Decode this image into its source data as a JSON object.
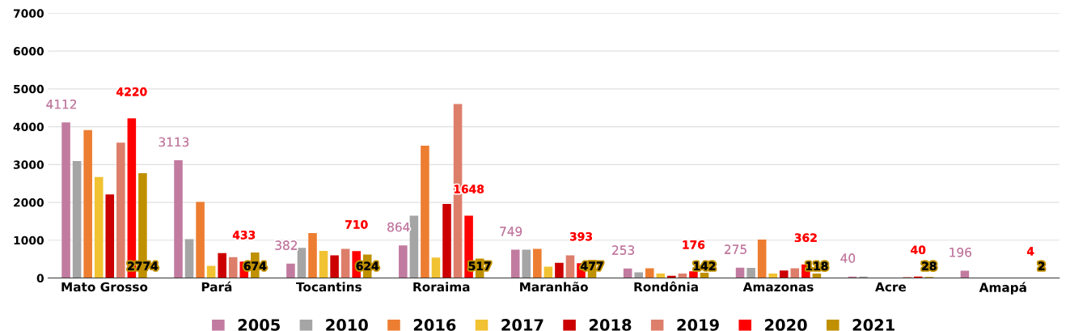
{
  "chart_data": {
    "type": "bar",
    "categories": [
      "Mato Grosso",
      "Pará",
      "Tocantins",
      "Roraima",
      "Maranhão",
      "Rondônia",
      "Amazonas",
      "Acre",
      "Amapá"
    ],
    "series": [
      {
        "name": "2005",
        "color": "#c27ba0",
        "values": [
          4112,
          3113,
          382,
          864,
          749,
          253,
          275,
          40,
          196
        ],
        "value_labels": [
          "4112",
          "3113",
          "382",
          "864",
          "749",
          "253",
          "275",
          "40",
          "196"
        ]
      },
      {
        "name": "2010",
        "color": "#a5a5a5",
        "values": [
          3090,
          1030,
          800,
          1650,
          750,
          150,
          270,
          40,
          0
        ]
      },
      {
        "name": "2016",
        "color": "#ed7d31",
        "values": [
          3910,
          2010,
          1190,
          3500,
          770,
          260,
          1020,
          null,
          0
        ]
      },
      {
        "name": "2017",
        "color": "#f1c232",
        "values": [
          2670,
          320,
          720,
          540,
          300,
          120,
          120,
          0,
          0
        ]
      },
      {
        "name": "2018",
        "color": "#cc0000",
        "values": [
          2210,
          660,
          600,
          1960,
          400,
          60,
          200,
          null,
          0
        ]
      },
      {
        "name": "2019",
        "color": "#dd7e6b",
        "values": [
          3580,
          550,
          770,
          4600,
          600,
          120,
          260,
          30,
          0
        ]
      },
      {
        "name": "2020",
        "color": "#ff0000",
        "values": [
          4220,
          433,
          710,
          1648,
          393,
          176,
          362,
          40,
          4
        ],
        "value_labels": [
          "4220",
          "433",
          "710",
          "1648",
          "393",
          "176",
          "362",
          "40",
          "4"
        ]
      },
      {
        "name": "2021",
        "color": "#bf9000",
        "values": [
          2774,
          674,
          624,
          517,
          477,
          142,
          118,
          28,
          2
        ],
        "value_labels": [
          "2774",
          "674",
          "624",
          "517",
          "477",
          "142",
          "118",
          "28",
          "2"
        ]
      }
    ],
    "ylim": [
      0,
      7000
    ],
    "yticks": [
      0,
      1000,
      2000,
      3000,
      4000,
      5000,
      6000,
      7000
    ],
    "grid": "y",
    "legend": "bottom"
  }
}
